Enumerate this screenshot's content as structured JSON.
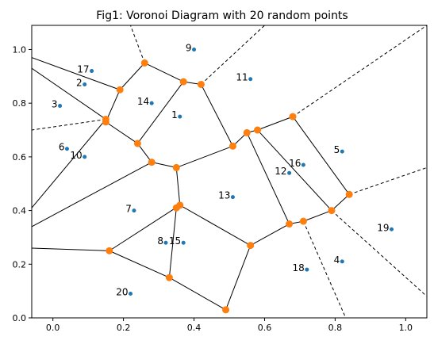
{
  "title": "Fig1: Voronoi Diagram with 20 random points",
  "chart_data": {
    "type": "scatter",
    "title": "Fig1: Voronoi Diagram with 20 random points",
    "xlabel": "",
    "ylabel": "",
    "xlim": [
      -0.06,
      1.06
    ],
    "ylim": [
      0.0,
      1.09
    ],
    "x_ticks": [
      "0.0",
      "0.2",
      "0.4",
      "0.6",
      "0.8",
      "1.0"
    ],
    "x_tick_values": [
      0.0,
      0.2,
      0.4,
      0.6,
      0.8,
      1.0
    ],
    "y_ticks": [
      "0.0",
      "0.2",
      "0.4",
      "0.6",
      "0.8",
      "1.0"
    ],
    "y_tick_values": [
      0.0,
      0.2,
      0.4,
      0.6,
      0.8,
      1.0
    ],
    "grid": false,
    "point_color": "#1f77b4",
    "vertex_color": "#ff7f0e",
    "edge_color": "#000000",
    "points": [
      {
        "label": "1",
        "x": 0.36,
        "y": 0.75
      },
      {
        "label": "2",
        "x": 0.09,
        "y": 0.87
      },
      {
        "label": "3",
        "x": 0.02,
        "y": 0.79
      },
      {
        "label": "4",
        "x": 0.82,
        "y": 0.21
      },
      {
        "label": "5",
        "x": 0.82,
        "y": 0.62
      },
      {
        "label": "6",
        "x": 0.04,
        "y": 0.63
      },
      {
        "label": "7",
        "x": 0.23,
        "y": 0.4
      },
      {
        "label": "8",
        "x": 0.32,
        "y": 0.28
      },
      {
        "label": "9",
        "x": 0.4,
        "y": 1.0
      },
      {
        "label": "10",
        "x": 0.09,
        "y": 0.6
      },
      {
        "label": "11",
        "x": 0.56,
        "y": 0.89
      },
      {
        "label": "12",
        "x": 0.67,
        "y": 0.54
      },
      {
        "label": "13",
        "x": 0.51,
        "y": 0.45
      },
      {
        "label": "14",
        "x": 0.28,
        "y": 0.8
      },
      {
        "label": "15",
        "x": 0.37,
        "y": 0.28
      },
      {
        "label": "16",
        "x": 0.71,
        "y": 0.57
      },
      {
        "label": "17",
        "x": 0.11,
        "y": 0.92
      },
      {
        "label": "18",
        "x": 0.72,
        "y": 0.18
      },
      {
        "label": "19",
        "x": 0.96,
        "y": 0.33
      },
      {
        "label": "20",
        "x": 0.22,
        "y": 0.09
      }
    ],
    "vertices": [
      {
        "x": 0.26,
        "y": 0.95
      },
      {
        "x": 0.19,
        "y": 0.85
      },
      {
        "x": 0.15,
        "y": 0.74
      },
      {
        "x": 0.15,
        "y": 0.73
      },
      {
        "x": 0.24,
        "y": 0.65
      },
      {
        "x": 0.28,
        "y": 0.58
      },
      {
        "x": 0.35,
        "y": 0.56
      },
      {
        "x": 0.37,
        "y": 0.88
      },
      {
        "x": 0.42,
        "y": 0.87
      },
      {
        "x": 0.51,
        "y": 0.64
      },
      {
        "x": 0.55,
        "y": 0.69
      },
      {
        "x": 0.58,
        "y": 0.7
      },
      {
        "x": 0.68,
        "y": 0.75
      },
      {
        "x": 0.84,
        "y": 0.46
      },
      {
        "x": 0.79,
        "y": 0.4
      },
      {
        "x": 0.71,
        "y": 0.36
      },
      {
        "x": 0.67,
        "y": 0.35
      },
      {
        "x": 0.56,
        "y": 0.27
      },
      {
        "x": 0.49,
        "y": 0.03
      },
      {
        "x": 0.33,
        "y": 0.15
      },
      {
        "x": 0.16,
        "y": 0.25
      },
      {
        "x": 0.36,
        "y": 0.42
      },
      {
        "x": 0.35,
        "y": 0.41
      }
    ],
    "edges": [
      [
        [
          -0.06,
          0.97
        ],
        [
          0.19,
          0.85
        ]
      ],
      [
        [
          -0.06,
          0.93
        ],
        [
          0.15,
          0.74
        ]
      ],
      [
        [
          0.19,
          0.85
        ],
        [
          0.26,
          0.95
        ]
      ],
      [
        [
          0.19,
          0.85
        ],
        [
          0.15,
          0.73
        ]
      ],
      [
        [
          0.26,
          0.95
        ],
        [
          0.37,
          0.88
        ]
      ],
      [
        [
          0.37,
          0.88
        ],
        [
          0.42,
          0.87
        ]
      ],
      [
        [
          0.37,
          0.88
        ],
        [
          0.24,
          0.65
        ]
      ],
      [
        [
          0.15,
          0.73
        ],
        [
          0.24,
          0.65
        ]
      ],
      [
        [
          0.24,
          0.65
        ],
        [
          0.28,
          0.58
        ]
      ],
      [
        [
          0.15,
          0.74
        ],
        [
          -0.06,
          0.41
        ]
      ],
      [
        [
          0.28,
          0.58
        ],
        [
          -0.06,
          0.34
        ]
      ],
      [
        [
          0.28,
          0.58
        ],
        [
          0.35,
          0.56
        ]
      ],
      [
        [
          0.35,
          0.56
        ],
        [
          0.51,
          0.64
        ]
      ],
      [
        [
          0.35,
          0.56
        ],
        [
          0.36,
          0.42
        ]
      ],
      [
        [
          0.42,
          0.87
        ],
        [
          0.51,
          0.64
        ]
      ],
      [
        [
          0.51,
          0.64
        ],
        [
          0.55,
          0.69
        ]
      ],
      [
        [
          0.55,
          0.69
        ],
        [
          0.58,
          0.7
        ]
      ],
      [
        [
          0.58,
          0.7
        ],
        [
          0.68,
          0.75
        ]
      ],
      [
        [
          0.68,
          0.75
        ],
        [
          0.84,
          0.46
        ]
      ],
      [
        [
          0.58,
          0.7
        ],
        [
          0.79,
          0.4
        ]
      ],
      [
        [
          0.84,
          0.46
        ],
        [
          0.79,
          0.4
        ]
      ],
      [
        [
          0.79,
          0.4
        ],
        [
          0.71,
          0.36
        ]
      ],
      [
        [
          0.71,
          0.36
        ],
        [
          0.67,
          0.35
        ]
      ],
      [
        [
          0.55,
          0.69
        ],
        [
          0.67,
          0.35
        ]
      ],
      [
        [
          0.67,
          0.35
        ],
        [
          0.56,
          0.27
        ]
      ],
      [
        [
          0.56,
          0.27
        ],
        [
          0.36,
          0.42
        ]
      ],
      [
        [
          0.56,
          0.27
        ],
        [
          0.49,
          0.03
        ]
      ],
      [
        [
          0.49,
          0.03
        ],
        [
          0.33,
          0.15
        ]
      ],
      [
        [
          0.33,
          0.15
        ],
        [
          0.35,
          0.41
        ]
      ],
      [
        [
          0.33,
          0.15
        ],
        [
          0.16,
          0.25
        ]
      ],
      [
        [
          0.16,
          0.25
        ],
        [
          -0.06,
          0.26
        ]
      ],
      [
        [
          0.16,
          0.25
        ],
        [
          0.36,
          0.42
        ]
      ]
    ],
    "dashed_edges": [
      [
        [
          0.15,
          0.74
        ],
        [
          -0.06,
          0.7
        ]
      ],
      [
        [
          0.26,
          0.95
        ],
        [
          0.22,
          1.09
        ]
      ],
      [
        [
          0.42,
          0.87
        ],
        [
          0.6,
          1.09
        ]
      ],
      [
        [
          0.68,
          0.75
        ],
        [
          1.06,
          1.09
        ]
      ],
      [
        [
          0.84,
          0.46
        ],
        [
          1.06,
          0.56
        ]
      ],
      [
        [
          0.71,
          0.36
        ],
        [
          0.83,
          0.0
        ]
      ],
      [
        [
          0.79,
          0.4
        ],
        [
          1.06,
          0.08
        ]
      ]
    ]
  }
}
